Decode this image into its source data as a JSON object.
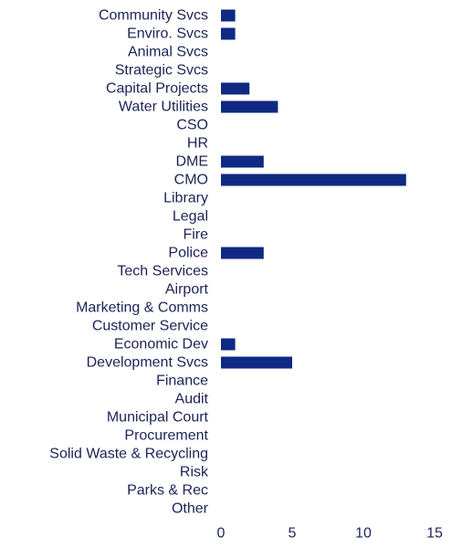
{
  "chart_data": {
    "type": "bar",
    "orientation": "horizontal",
    "categories": [
      "Community Svcs",
      "Enviro. Svcs",
      "Animal Svcs",
      "Strategic Svcs",
      "Capital Projects",
      "Water Utilities",
      "CSO",
      "HR",
      "DME",
      "CMO",
      "Library",
      "Legal",
      "Fire",
      "Police",
      "Tech Services",
      "Airport",
      "Marketing & Comms",
      "Customer Service",
      "Economic Dev",
      "Development Svcs",
      "Finance",
      "Audit",
      "Municipal Court",
      "Procurement",
      "Solid Waste & Recycling",
      "Risk",
      "Parks & Rec",
      "Other"
    ],
    "values": [
      1,
      1,
      0,
      0,
      2,
      4,
      0,
      0,
      3,
      13,
      0,
      0,
      0,
      3,
      0,
      0,
      0,
      0,
      1,
      5,
      0,
      0,
      0,
      0,
      0,
      0,
      0,
      0
    ],
    "xlim": [
      0,
      15
    ],
    "xticks": [
      "0",
      "5",
      "10",
      "15"
    ],
    "grid": false,
    "bar_color": "#102a83",
    "title": "",
    "xlabel": "",
    "ylabel": ""
  }
}
